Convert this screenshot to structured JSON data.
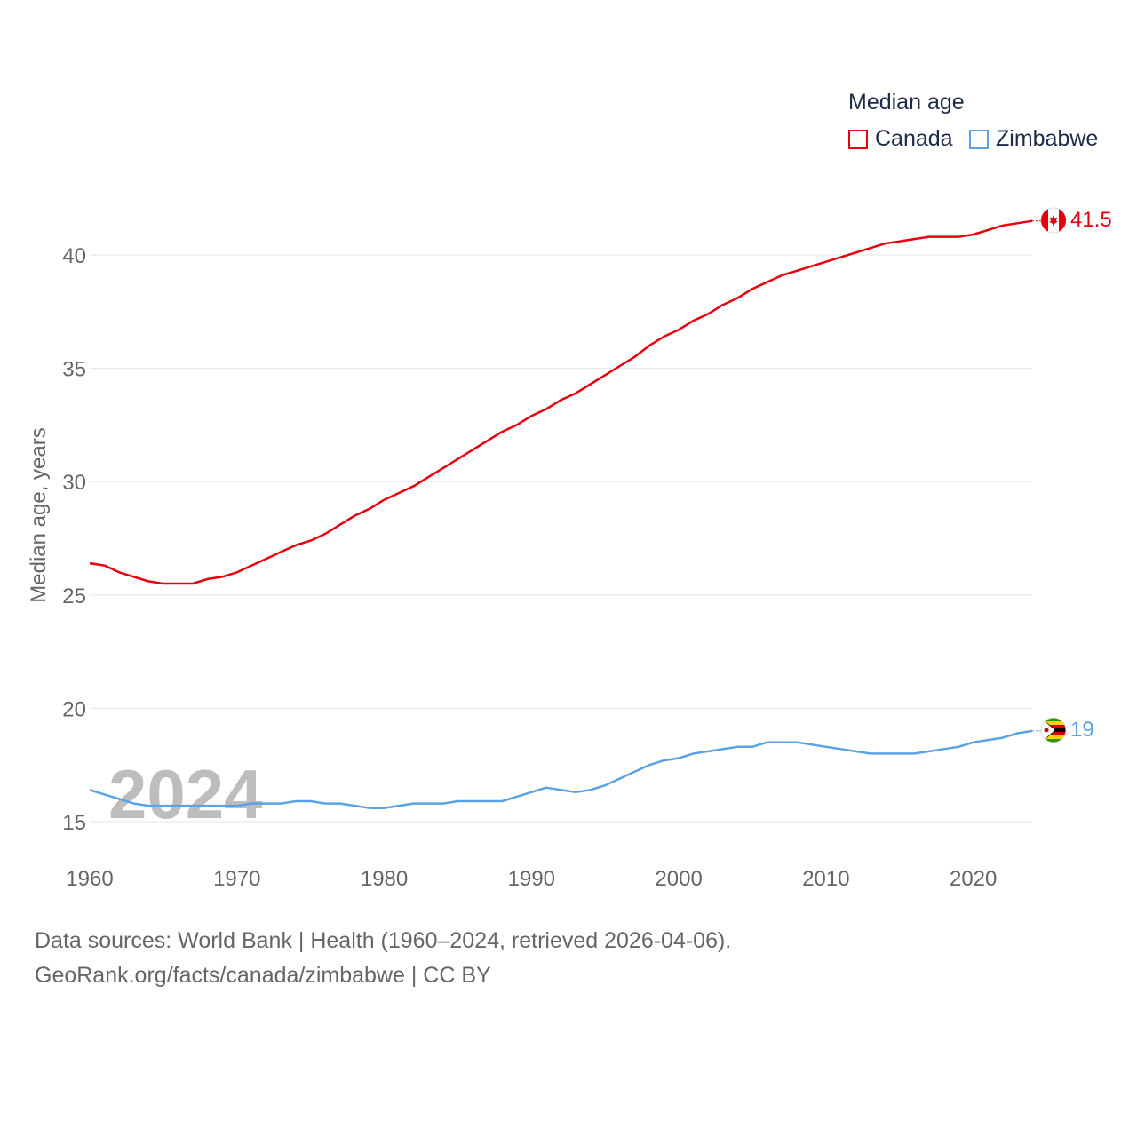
{
  "legend": {
    "title": "Median age",
    "items": [
      {
        "label": "Canada",
        "color": "#e8000d"
      },
      {
        "label": "Zimbabwe",
        "color": "#5aa2e6"
      }
    ]
  },
  "year_overlay": "2024",
  "end_labels": {
    "canada": "41.5",
    "zimbabwe": "19"
  },
  "source_lines": [
    "Data sources: World Bank | Health (1960–2024, retrieved 2026-04-06).",
    "GeoRank.org/facts/canada/zimbabwe | CC BY"
  ],
  "chart_data": {
    "type": "line",
    "title": "Median age",
    "xlabel": "",
    "ylabel": "Median age, years",
    "xlim": [
      1960,
      2024
    ],
    "ylim": [
      13.5,
      42
    ],
    "yticks": [
      15,
      20,
      25,
      30,
      35,
      40
    ],
    "xticks": [
      1960,
      1970,
      1980,
      1990,
      2000,
      2010,
      2020
    ],
    "x": [
      1960,
      1961,
      1962,
      1963,
      1964,
      1965,
      1966,
      1967,
      1968,
      1969,
      1970,
      1971,
      1972,
      1973,
      1974,
      1975,
      1976,
      1977,
      1978,
      1979,
      1980,
      1981,
      1982,
      1983,
      1984,
      1985,
      1986,
      1987,
      1988,
      1989,
      1990,
      1991,
      1992,
      1993,
      1994,
      1995,
      1996,
      1997,
      1998,
      1999,
      2000,
      2001,
      2002,
      2003,
      2004,
      2005,
      2006,
      2007,
      2008,
      2009,
      2010,
      2011,
      2012,
      2013,
      2014,
      2015,
      2016,
      2017,
      2018,
      2019,
      2020,
      2021,
      2022,
      2023,
      2024
    ],
    "series": [
      {
        "name": "Canada",
        "color": "#e8000d",
        "values": [
          26.4,
          26.3,
          26.0,
          25.8,
          25.6,
          25.5,
          25.5,
          25.5,
          25.7,
          25.8,
          26.0,
          26.3,
          26.6,
          26.9,
          27.2,
          27.4,
          27.7,
          28.1,
          28.5,
          28.8,
          29.2,
          29.5,
          29.8,
          30.2,
          30.6,
          31.0,
          31.4,
          31.8,
          32.2,
          32.5,
          32.9,
          33.2,
          33.6,
          33.9,
          34.3,
          34.7,
          35.1,
          35.5,
          36.0,
          36.4,
          36.7,
          37.1,
          37.4,
          37.8,
          38.1,
          38.5,
          38.8,
          39.1,
          39.3,
          39.5,
          39.7,
          39.9,
          40.1,
          40.3,
          40.5,
          40.6,
          40.7,
          40.8,
          40.8,
          40.8,
          40.9,
          41.1,
          41.3,
          41.4,
          41.5
        ]
      },
      {
        "name": "Zimbabwe",
        "color": "#5aa2e6",
        "values": [
          16.4,
          16.2,
          16.0,
          15.8,
          15.7,
          15.7,
          15.7,
          15.7,
          15.7,
          15.7,
          15.7,
          15.8,
          15.8,
          15.8,
          15.9,
          15.9,
          15.8,
          15.8,
          15.7,
          15.6,
          15.6,
          15.7,
          15.8,
          15.8,
          15.8,
          15.9,
          15.9,
          15.9,
          15.9,
          16.1,
          16.3,
          16.5,
          16.4,
          16.3,
          16.4,
          16.6,
          16.9,
          17.2,
          17.5,
          17.7,
          17.8,
          18.0,
          18.1,
          18.2,
          18.3,
          18.3,
          18.5,
          18.5,
          18.5,
          18.4,
          18.3,
          18.2,
          18.1,
          18.0,
          18.0,
          18.0,
          18.0,
          18.1,
          18.2,
          18.3,
          18.5,
          18.6,
          18.7,
          18.9,
          19.0
        ]
      }
    ]
  }
}
